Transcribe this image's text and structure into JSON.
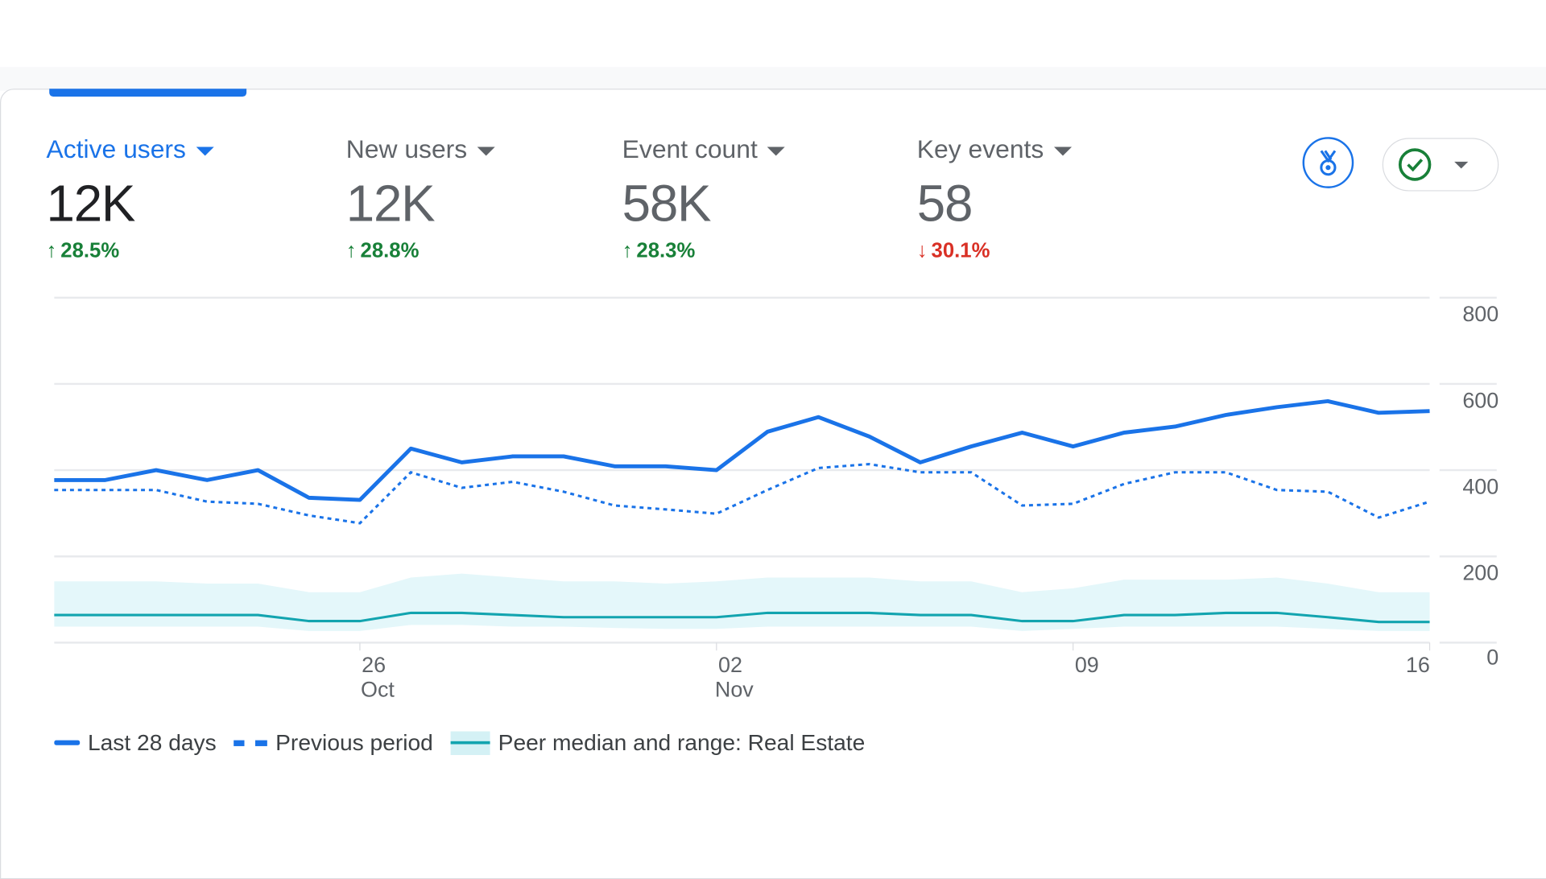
{
  "metrics": [
    {
      "label": "Active users",
      "value": "12K",
      "change": "28.5%",
      "direction": "up",
      "active": true
    },
    {
      "label": "New users",
      "value": "12K",
      "change": "28.8%",
      "direction": "up",
      "active": false
    },
    {
      "label": "Event count",
      "value": "58K",
      "change": "28.3%",
      "direction": "up",
      "active": false
    },
    {
      "label": "Key events",
      "value": "58",
      "change": "30.1%",
      "direction": "down",
      "active": false
    }
  ],
  "icons": {
    "insight": "benchmark-medal-icon",
    "status": "check-circle-icon"
  },
  "colors": {
    "accent": "#1a73e8",
    "up": "#188038",
    "down": "#d93025",
    "peer": "#12a4af",
    "peer_band": "#e4f7fa"
  },
  "chart_data": {
    "type": "line",
    "x": [
      "Oct 20",
      "Oct 21",
      "Oct 22",
      "Oct 23",
      "Oct 24",
      "Oct 25",
      "Oct 26",
      "Oct 27",
      "Oct 28",
      "Oct 29",
      "Oct 30",
      "Oct 31",
      "Nov 01",
      "Nov 02",
      "Nov 03",
      "Nov 04",
      "Nov 05",
      "Nov 06",
      "Nov 07",
      "Nov 08",
      "Nov 09",
      "Nov 10",
      "Nov 11",
      "Nov 12",
      "Nov 13",
      "Nov 14",
      "Nov 15",
      "Nov 16"
    ],
    "x_ticks": [
      {
        "day": "26",
        "month": "Oct",
        "index": 6
      },
      {
        "day": "02",
        "month": "Nov",
        "index": 13
      },
      {
        "day": "09",
        "month": "",
        "index": 20
      },
      {
        "day": "16",
        "month": "",
        "index": 27
      }
    ],
    "y_ticks": [
      "0",
      "200",
      "400",
      "600",
      "800"
    ],
    "ylim": [
      0,
      800
    ],
    "y_axis_side": "right",
    "grid": true,
    "legend_placement": "bottom-left",
    "series": [
      {
        "name": "Last 28 days",
        "style": "solid",
        "values": [
          377,
          377,
          400,
          377,
          400,
          336,
          331,
          450,
          418,
          432,
          432,
          409,
          409,
          400,
          489,
          523,
          478,
          418,
          455,
          487,
          455,
          487,
          501,
          528,
          546,
          560,
          533,
          537
        ]
      },
      {
        "name": "Previous period",
        "style": "dashed",
        "values": [
          354,
          354,
          354,
          327,
          322,
          295,
          277,
          395,
          359,
          373,
          350,
          318,
          309,
          299,
          354,
          405,
          414,
          395,
          395,
          318,
          322,
          368,
          395,
          395,
          354,
          350,
          290,
          327
        ]
      }
    ],
    "peer": {
      "name": "Peer median and range: Real Estate",
      "median": [
        64,
        64,
        64,
        64,
        64,
        50,
        50,
        69,
        69,
        64,
        59,
        59,
        59,
        59,
        69,
        69,
        69,
        64,
        64,
        50,
        50,
        64,
        64,
        69,
        69,
        59,
        48,
        48
      ],
      "upper": [
        142,
        142,
        142,
        137,
        137,
        117,
        117,
        151,
        160,
        151,
        142,
        142,
        137,
        142,
        151,
        151,
        151,
        142,
        142,
        117,
        126,
        146,
        146,
        146,
        151,
        137,
        117,
        117
      ],
      "lower": [
        37,
        37,
        37,
        37,
        37,
        27,
        27,
        41,
        41,
        37,
        37,
        34,
        32,
        32,
        37,
        37,
        37,
        37,
        37,
        27,
        32,
        37,
        37,
        37,
        37,
        32,
        27,
        27
      ]
    }
  }
}
